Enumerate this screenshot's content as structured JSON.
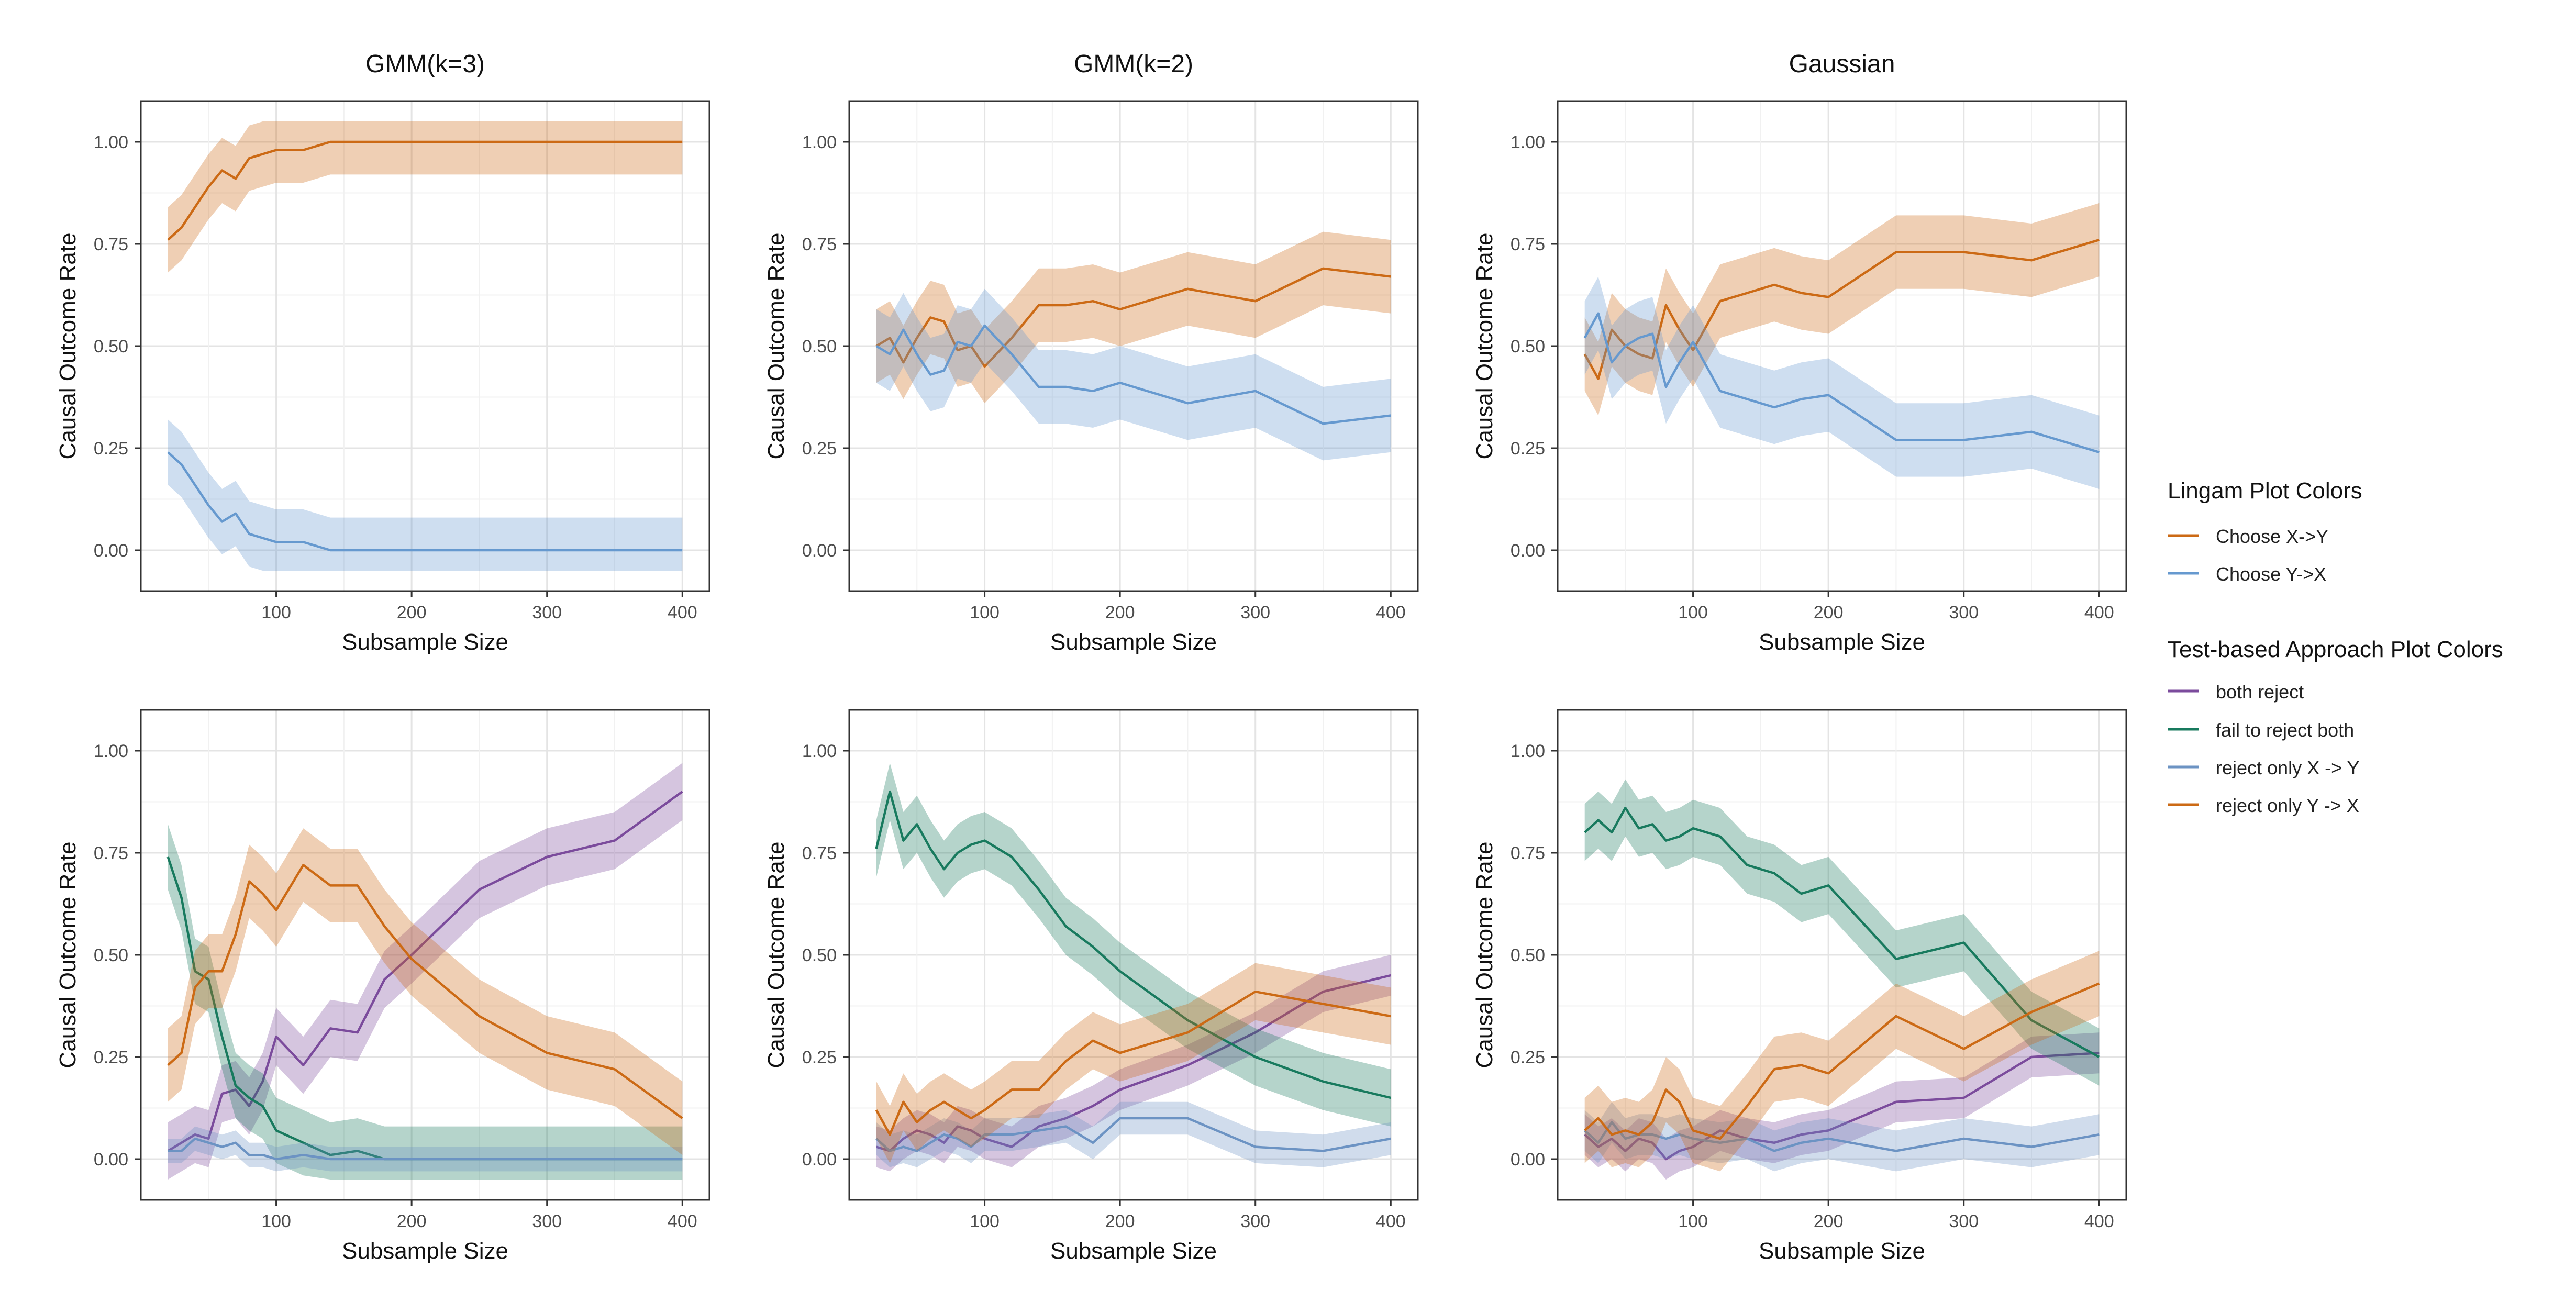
{
  "legend": {
    "lingam_title": "Lingam Plot Colors",
    "lingam_items": [
      {
        "label": "Choose X->Y",
        "color": "#cc6a15"
      },
      {
        "label": "Choose Y->X",
        "color": "#6699cf"
      }
    ],
    "test_title": "Test-based Approach Plot Colors",
    "test_items": [
      {
        "label": "both reject",
        "color": "#7b4b9c"
      },
      {
        "label": "fail to reject both",
        "color": "#187a5e"
      },
      {
        "label": "reject only X -> Y",
        "color": "#6c93c3"
      },
      {
        "label": "reject only Y -> X",
        "color": "#cc6a15"
      }
    ]
  },
  "chart_data": [
    {
      "type": "line",
      "panel": "top-left",
      "title": "GMM(k=3)",
      "xlabel": "Subsample Size",
      "ylabel": "Causal Outcome Rate",
      "xlim": [
        0,
        420
      ],
      "ylim": [
        -0.1,
        1.1
      ],
      "xticks": [
        "100",
        "200",
        "300",
        "400"
      ],
      "yticks": [
        "0.00",
        "0.25",
        "0.50",
        "0.75",
        "1.00"
      ],
      "grid": true,
      "x": [
        20,
        30,
        40,
        50,
        60,
        70,
        80,
        90,
        100,
        120,
        140,
        160,
        180,
        200,
        250,
        300,
        350,
        400
      ],
      "series": [
        {
          "name": "Choose X->Y",
          "color": "#cc6a15",
          "band": 0.08,
          "values": [
            0.76,
            0.79,
            0.84,
            0.89,
            0.93,
            0.91,
            0.96,
            0.97,
            0.98,
            0.98,
            1,
            1,
            1,
            1,
            1,
            1,
            1,
            1
          ]
        },
        {
          "name": "Choose Y->X",
          "color": "#6699cf",
          "band": 0.08,
          "values": [
            0.24,
            0.21,
            0.16,
            0.11,
            0.07,
            0.09,
            0.04,
            0.03,
            0.02,
            0.02,
            0,
            0,
            0,
            0,
            0,
            0,
            0,
            0
          ]
        }
      ]
    },
    {
      "type": "line",
      "panel": "top-middle",
      "title": "GMM(k=2)",
      "xlabel": "Subsample Size",
      "ylabel": "Causal Outcome Rate",
      "xlim": [
        0,
        420
      ],
      "ylim": [
        -0.1,
        1.1
      ],
      "xticks": [
        "100",
        "200",
        "300",
        "400"
      ],
      "yticks": [
        "0.00",
        "0.25",
        "0.50",
        "0.75",
        "1.00"
      ],
      "grid": true,
      "x": [
        20,
        30,
        40,
        50,
        60,
        70,
        80,
        90,
        100,
        120,
        140,
        160,
        180,
        200,
        250,
        300,
        350,
        400
      ],
      "series": [
        {
          "name": "Choose X->Y",
          "color": "#cc6a15",
          "band": 0.09,
          "values": [
            0.5,
            0.52,
            0.46,
            0.52,
            0.57,
            0.56,
            0.49,
            0.5,
            0.45,
            0.52,
            0.6,
            0.6,
            0.61,
            0.59,
            0.64,
            0.61,
            0.69,
            0.67
          ]
        },
        {
          "name": "Choose Y->X",
          "color": "#6699cf",
          "band": 0.09,
          "values": [
            0.5,
            0.48,
            0.54,
            0.48,
            0.43,
            0.44,
            0.51,
            0.5,
            0.55,
            0.48,
            0.4,
            0.4,
            0.39,
            0.41,
            0.36,
            0.39,
            0.31,
            0.33
          ]
        }
      ]
    },
    {
      "type": "line",
      "panel": "top-right",
      "title": "Gaussian",
      "xlabel": "Subsample Size",
      "ylabel": "Causal Outcome Rate",
      "xlim": [
        0,
        420
      ],
      "ylim": [
        -0.1,
        1.1
      ],
      "xticks": [
        "100",
        "200",
        "300",
        "400"
      ],
      "yticks": [
        "0.00",
        "0.25",
        "0.50",
        "0.75",
        "1.00"
      ],
      "grid": true,
      "x": [
        20,
        30,
        40,
        50,
        60,
        70,
        80,
        90,
        100,
        120,
        140,
        160,
        180,
        200,
        250,
        300,
        350,
        400
      ],
      "series": [
        {
          "name": "Choose X->Y",
          "color": "#cc6a15",
          "band": 0.09,
          "values": [
            0.48,
            0.42,
            0.54,
            0.5,
            0.48,
            0.47,
            0.6,
            0.54,
            0.49,
            0.61,
            0.63,
            0.65,
            0.63,
            0.62,
            0.73,
            0.73,
            0.71,
            0.76
          ]
        },
        {
          "name": "Choose Y->X",
          "color": "#6699cf",
          "band": 0.09,
          "values": [
            0.52,
            0.58,
            0.46,
            0.5,
            0.52,
            0.53,
            0.4,
            0.46,
            0.51,
            0.39,
            0.37,
            0.35,
            0.37,
            0.38,
            0.27,
            0.27,
            0.29,
            0.24
          ]
        }
      ]
    },
    {
      "type": "line",
      "panel": "bottom-left",
      "title": "",
      "xlabel": "Subsample Size",
      "ylabel": "Causal Outcome Rate",
      "xlim": [
        0,
        420
      ],
      "ylim": [
        -0.1,
        1.1
      ],
      "xticks": [
        "100",
        "200",
        "300",
        "400"
      ],
      "yticks": [
        "0.00",
        "0.25",
        "0.50",
        "0.75",
        "1.00"
      ],
      "grid": true,
      "x": [
        20,
        30,
        40,
        50,
        60,
        70,
        80,
        90,
        100,
        120,
        140,
        160,
        180,
        200,
        250,
        300,
        350,
        400
      ],
      "series": [
        {
          "name": "both reject",
          "color": "#7b4b9c",
          "band": 0.07,
          "values": [
            0.02,
            0.04,
            0.06,
            0.05,
            0.16,
            0.17,
            0.13,
            0.19,
            0.3,
            0.23,
            0.32,
            0.31,
            0.44,
            0.5,
            0.66,
            0.74,
            0.78,
            0.9
          ]
        },
        {
          "name": "fail to reject both",
          "color": "#187a5e",
          "band": 0.08,
          "values": [
            0.74,
            0.64,
            0.46,
            0.44,
            0.3,
            0.18,
            0.15,
            0.13,
            0.07,
            0.04,
            0.01,
            0.02,
            0,
            0,
            0,
            0,
            0,
            0
          ]
        },
        {
          "name": "reject only X -> Y",
          "color": "#6c93c3",
          "band": 0.03,
          "values": [
            0.02,
            0.02,
            0.05,
            0.04,
            0.03,
            0.04,
            0.01,
            0.01,
            0,
            0.01,
            0,
            0,
            0,
            0,
            0,
            0,
            0,
            0
          ]
        },
        {
          "name": "reject only Y -> X",
          "color": "#cc6a15",
          "band": 0.09,
          "values": [
            0.23,
            0.26,
            0.42,
            0.46,
            0.46,
            0.55,
            0.68,
            0.65,
            0.61,
            0.72,
            0.67,
            0.67,
            0.57,
            0.49,
            0.35,
            0.26,
            0.22,
            0.1
          ]
        }
      ]
    },
    {
      "type": "line",
      "panel": "bottom-middle",
      "title": "",
      "xlabel": "Subsample Size",
      "ylabel": "Causal Outcome Rate",
      "xlim": [
        0,
        420
      ],
      "ylim": [
        -0.1,
        1.1
      ],
      "xticks": [
        "100",
        "200",
        "300",
        "400"
      ],
      "yticks": [
        "0.00",
        "0.25",
        "0.50",
        "0.75",
        "1.00"
      ],
      "grid": true,
      "x": [
        20,
        30,
        40,
        50,
        60,
        70,
        80,
        90,
        100,
        120,
        140,
        160,
        180,
        200,
        250,
        300,
        350,
        400
      ],
      "series": [
        {
          "name": "both reject",
          "color": "#7b4b9c",
          "band": 0.05,
          "values": [
            0.03,
            0.02,
            0.05,
            0.07,
            0.06,
            0.04,
            0.08,
            0.07,
            0.05,
            0.03,
            0.08,
            0.1,
            0.13,
            0.17,
            0.23,
            0.31,
            0.41,
            0.45
          ]
        },
        {
          "name": "fail to reject both",
          "color": "#187a5e",
          "band": 0.07,
          "values": [
            0.76,
            0.9,
            0.78,
            0.82,
            0.76,
            0.71,
            0.75,
            0.77,
            0.78,
            0.74,
            0.66,
            0.57,
            0.52,
            0.46,
            0.34,
            0.25,
            0.19,
            0.15
          ]
        },
        {
          "name": "reject only X -> Y",
          "color": "#6c93c3",
          "band": 0.04,
          "values": [
            0.05,
            0.02,
            0.03,
            0.02,
            0.04,
            0.06,
            0.05,
            0.03,
            0.06,
            0.06,
            0.07,
            0.08,
            0.04,
            0.1,
            0.1,
            0.03,
            0.02,
            0.05
          ]
        },
        {
          "name": "reject only Y -> X",
          "color": "#cc6a15",
          "band": 0.07,
          "values": [
            0.12,
            0.06,
            0.14,
            0.09,
            0.12,
            0.14,
            0.12,
            0.1,
            0.12,
            0.17,
            0.17,
            0.24,
            0.29,
            0.26,
            0.31,
            0.41,
            0.38,
            0.35
          ]
        }
      ]
    },
    {
      "type": "line",
      "panel": "bottom-right",
      "title": "",
      "xlabel": "Subsample Size",
      "ylabel": "Causal Outcome Rate",
      "xlim": [
        0,
        420
      ],
      "ylim": [
        -0.1,
        1.1
      ],
      "xticks": [
        "100",
        "200",
        "300",
        "400"
      ],
      "yticks": [
        "0.00",
        "0.25",
        "0.50",
        "0.75",
        "1.00"
      ],
      "grid": true,
      "x": [
        20,
        30,
        40,
        50,
        60,
        70,
        80,
        90,
        100,
        120,
        140,
        160,
        180,
        200,
        250,
        300,
        350,
        400
      ],
      "series": [
        {
          "name": "both reject",
          "color": "#7b4b9c",
          "band": 0.05,
          "values": [
            0.06,
            0.03,
            0.05,
            0.02,
            0.05,
            0.04,
            0.0,
            0.02,
            0.03,
            0.07,
            0.05,
            0.04,
            0.06,
            0.07,
            0.14,
            0.15,
            0.25,
            0.26
          ]
        },
        {
          "name": "fail to reject both",
          "color": "#187a5e",
          "band": 0.07,
          "values": [
            0.8,
            0.83,
            0.8,
            0.86,
            0.81,
            0.82,
            0.78,
            0.79,
            0.81,
            0.79,
            0.72,
            0.7,
            0.65,
            0.67,
            0.49,
            0.53,
            0.34,
            0.25
          ]
        },
        {
          "name": "reject only X -> Y",
          "color": "#6c93c3",
          "band": 0.05,
          "values": [
            0.07,
            0.04,
            0.09,
            0.05,
            0.06,
            0.06,
            0.05,
            0.06,
            0.05,
            0.04,
            0.05,
            0.02,
            0.04,
            0.05,
            0.02,
            0.05,
            0.03,
            0.06
          ]
        },
        {
          "name": "reject only Y -> X",
          "color": "#cc6a15",
          "band": 0.08,
          "values": [
            0.07,
            0.1,
            0.06,
            0.07,
            0.06,
            0.09,
            0.17,
            0.14,
            0.07,
            0.05,
            0.13,
            0.22,
            0.23,
            0.21,
            0.35,
            0.27,
            0.36,
            0.43
          ]
        }
      ]
    }
  ]
}
